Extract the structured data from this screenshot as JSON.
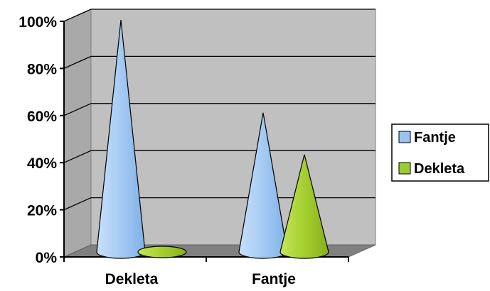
{
  "chart_data": {
    "type": "bar",
    "subtype": "3d-cone",
    "categories": [
      "Dekleta",
      "Fantje"
    ],
    "series": [
      {
        "name": "Fantje",
        "values": [
          100,
          60
        ],
        "color": "#99c2f0"
      },
      {
        "name": "Dekleta",
        "values": [
          0,
          42
        ],
        "color": "#9acd32"
      }
    ],
    "ylim": [
      0,
      100
    ],
    "yticks": [
      0,
      20,
      40,
      60,
      80,
      100
    ],
    "ytick_labels": [
      "0%",
      "20%",
      "40%",
      "60%",
      "80%",
      "100%"
    ],
    "grid": true,
    "legend_position": "right",
    "wall_color": "#c0c0c0"
  }
}
